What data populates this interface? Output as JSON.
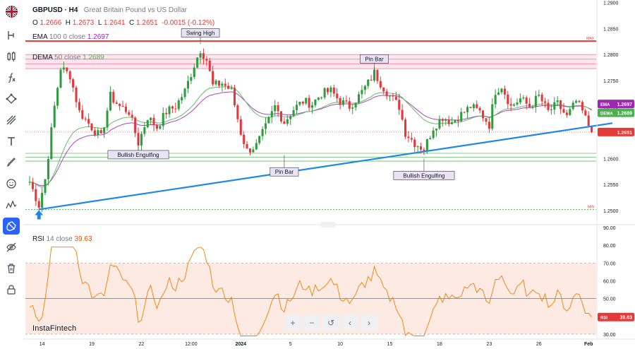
{
  "header": {
    "symbol": "GBPUSD · H4",
    "description": "Great Britain Pound vs US Dollar",
    "ohlc": {
      "o_label": "O",
      "o": "1.2666",
      "h_label": "H",
      "h": "1.2673",
      "l_label": "L",
      "l": "1.2641",
      "c_label": "C",
      "c": "1.2651",
      "change": "-0.0015 (-0.12%)"
    }
  },
  "indicators": {
    "ema": {
      "name": "EMA",
      "params": "100 0 close",
      "value": "1.2697",
      "color": "#9c27b0"
    },
    "dema": {
      "name": "DEMA",
      "params": "50 close",
      "value": "1.2689",
      "color": "#4caf50"
    },
    "rsi": {
      "name": "RSI",
      "params": "14 close",
      "value": "39.63",
      "color": "#f57c00"
    }
  },
  "brand": "InstaFintech",
  "colors": {
    "up": "#26a69a",
    "down": "#ef5350",
    "up_candle": "#2e9d3f",
    "down_candle": "#e5383b",
    "trendline": "#1e88e5",
    "resistance": "#e53935",
    "zone": "#f48fb1",
    "support": "#66bb6a"
  },
  "toolbar": {
    "icons": [
      "uk-flag-icon",
      "indicator-h-icon",
      "candles-icon",
      "formula-icon",
      "nodes-icon",
      "drawing-lines-icon",
      "text-icon",
      "brush-icon",
      "emoji-icon",
      "pattern-icon",
      "magnet-icon",
      "hide-icon",
      "trash-icon",
      "lock-icon"
    ]
  },
  "navigation": {
    "buttons": [
      "+",
      "−",
      "↺",
      "‹",
      "›"
    ]
  },
  "chart_data": [
    {
      "type": "candlestick",
      "title": "GBPUSD · H4",
      "x_tick_labels": [
        "14",
        "19",
        "22",
        "12:00",
        "2024",
        "5",
        "10",
        "15",
        "18",
        "23",
        "26",
        "Feb"
      ],
      "y_ticks": [
        "1.2900",
        "1.2850",
        "1.2800",
        "1.2750",
        "1.2700",
        "1.2650",
        "1.2600",
        "1.2550",
        "1.2500"
      ],
      "ylim": [
        1.247,
        1.2905
      ],
      "price_tags": [
        {
          "label": "EMA",
          "value": "1.2697",
          "color": "#9c27b0"
        },
        {
          "label": "DEMA",
          "value": "1.2689",
          "color": "#4caf50"
        },
        {
          "label": "",
          "value": "1.2651",
          "color": "#e53935"
        }
      ],
      "level_labels": {
        "max": "MAX",
        "min": "MIN"
      },
      "levels": {
        "max": 1.2826,
        "min": 1.2502,
        "resistance_zone": [
          1.2773,
          1.28
        ],
        "support_zone": [
          1.2595,
          1.261
        ],
        "trend_start": 1.2502,
        "trend_end": 1.2656
      },
      "annotations": [
        {
          "text": "Swing High",
          "idx": 55,
          "price": 1.282,
          "pos": "above"
        },
        {
          "text": "Pin Bar",
          "idx": 111,
          "price": 1.277,
          "pos": "above"
        },
        {
          "text": "Bullish Engulfing",
          "idx": 35,
          "price": 1.264,
          "pos": "below"
        },
        {
          "text": "Pin Bar",
          "idx": 82,
          "price": 1.2607,
          "pos": "below"
        },
        {
          "text": "Bullish Engulfing",
          "idx": 127,
          "price": 1.26,
          "pos": "below"
        }
      ],
      "close_anchors": [
        [
          0,
          1.2555
        ],
        [
          3,
          1.251
        ],
        [
          5,
          1.256
        ],
        [
          8,
          1.27
        ],
        [
          10,
          1.2775
        ],
        [
          13,
          1.276
        ],
        [
          16,
          1.269
        ],
        [
          20,
          1.266
        ],
        [
          23,
          1.264
        ],
        [
          26,
          1.272
        ],
        [
          29,
          1.27
        ],
        [
          32,
          1.269
        ],
        [
          35,
          1.263
        ],
        [
          38,
          1.268
        ],
        [
          41,
          1.266
        ],
        [
          44,
          1.269
        ],
        [
          47,
          1.27
        ],
        [
          50,
          1.273
        ],
        [
          53,
          1.278
        ],
        [
          55,
          1.281
        ],
        [
          57,
          1.279
        ],
        [
          59,
          1.274
        ],
        [
          62,
          1.2745
        ],
        [
          65,
          1.273
        ],
        [
          68,
          1.265
        ],
        [
          70,
          1.2615
        ],
        [
          73,
          1.2625
        ],
        [
          76,
          1.266
        ],
        [
          79,
          1.27
        ],
        [
          82,
          1.267
        ],
        [
          85,
          1.2695
        ],
        [
          88,
          1.271
        ],
        [
          91,
          1.2705
        ],
        [
          94,
          1.2725
        ],
        [
          97,
          1.273
        ],
        [
          100,
          1.271
        ],
        [
          103,
          1.27
        ],
        [
          106,
          1.272
        ],
        [
          109,
          1.2745
        ],
        [
          111,
          1.2765
        ],
        [
          113,
          1.2745
        ],
        [
          116,
          1.272
        ],
        [
          119,
          1.27
        ],
        [
          121,
          1.265
        ],
        [
          124,
          1.263
        ],
        [
          127,
          1.2618
        ],
        [
          130,
          1.266
        ],
        [
          133,
          1.268
        ],
        [
          136,
          1.267
        ],
        [
          139,
          1.2685
        ],
        [
          142,
          1.27
        ],
        [
          145,
          1.269
        ],
        [
          148,
          1.2665
        ],
        [
          150,
          1.273
        ],
        [
          152,
          1.274
        ],
        [
          155,
          1.27
        ],
        [
          158,
          1.2715
        ],
        [
          161,
          1.27
        ],
        [
          164,
          1.272
        ],
        [
          167,
          1.269
        ],
        [
          170,
          1.2705
        ],
        [
          173,
          1.268
        ],
        [
          176,
          1.271
        ],
        [
          178,
          1.269
        ],
        [
          181,
          1.2651
        ]
      ],
      "candle_count": 182
    },
    {
      "type": "line",
      "title": "RSI 14 close",
      "y_ticks": [
        "90.00",
        "80.00",
        "70.00",
        "60.00",
        "50.00",
        "40.00",
        "30.00"
      ],
      "ylim": [
        28,
        90
      ],
      "band": [
        30,
        70
      ],
      "midline": 50,
      "series": [
        {
          "name": "RSI",
          "last": 39.63
        }
      ]
    }
  ]
}
